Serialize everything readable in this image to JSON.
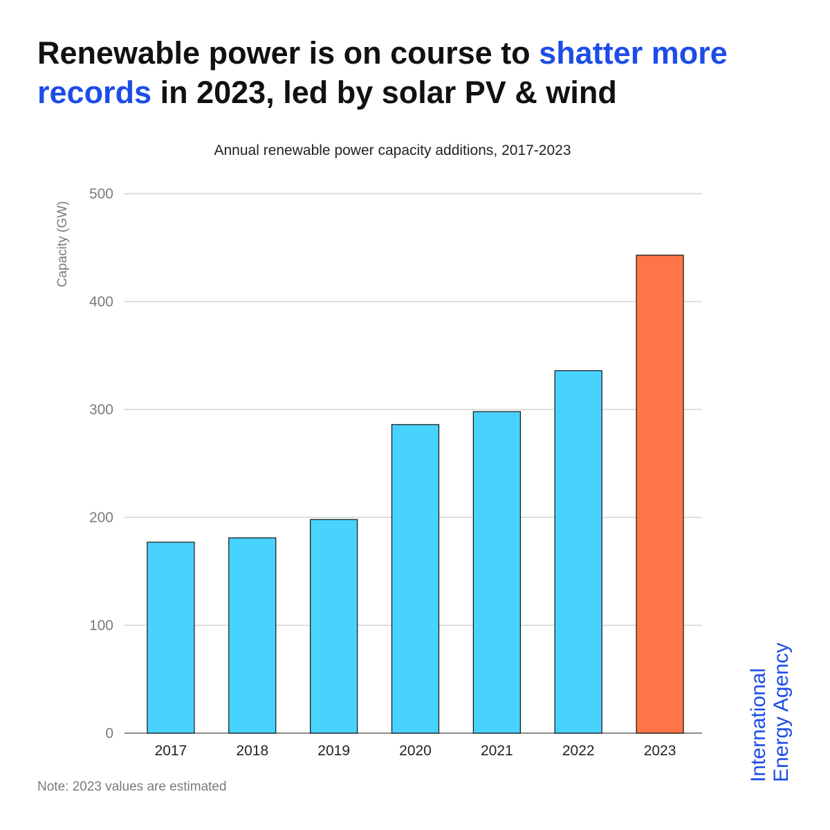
{
  "headline": {
    "part1": "Renewable power is on course to ",
    "highlight": "shatter more records",
    "part2": " in 2023, led by solar PV & wind"
  },
  "colors": {
    "accent": "#1d4de8",
    "bar_default": "#48d3ff",
    "bar_highlight": "#ff7548"
  },
  "chart_data": {
    "type": "bar",
    "title": "Annual renewable power capacity additions, 2017-2023",
    "xlabel": "",
    "ylabel": "Capacity (GW)",
    "categories": [
      "2017",
      "2018",
      "2019",
      "2020",
      "2021",
      "2022",
      "2023"
    ],
    "values": [
      177,
      181,
      198,
      286,
      298,
      336,
      443
    ],
    "highlight_category": "2023",
    "ylim": [
      0,
      500
    ],
    "yticks": [
      0,
      100,
      200,
      300,
      400,
      500
    ],
    "grid": true
  },
  "note": "Note: 2023 values are estimated",
  "logo": {
    "line1": "International",
    "line2": "Energy Agency"
  }
}
